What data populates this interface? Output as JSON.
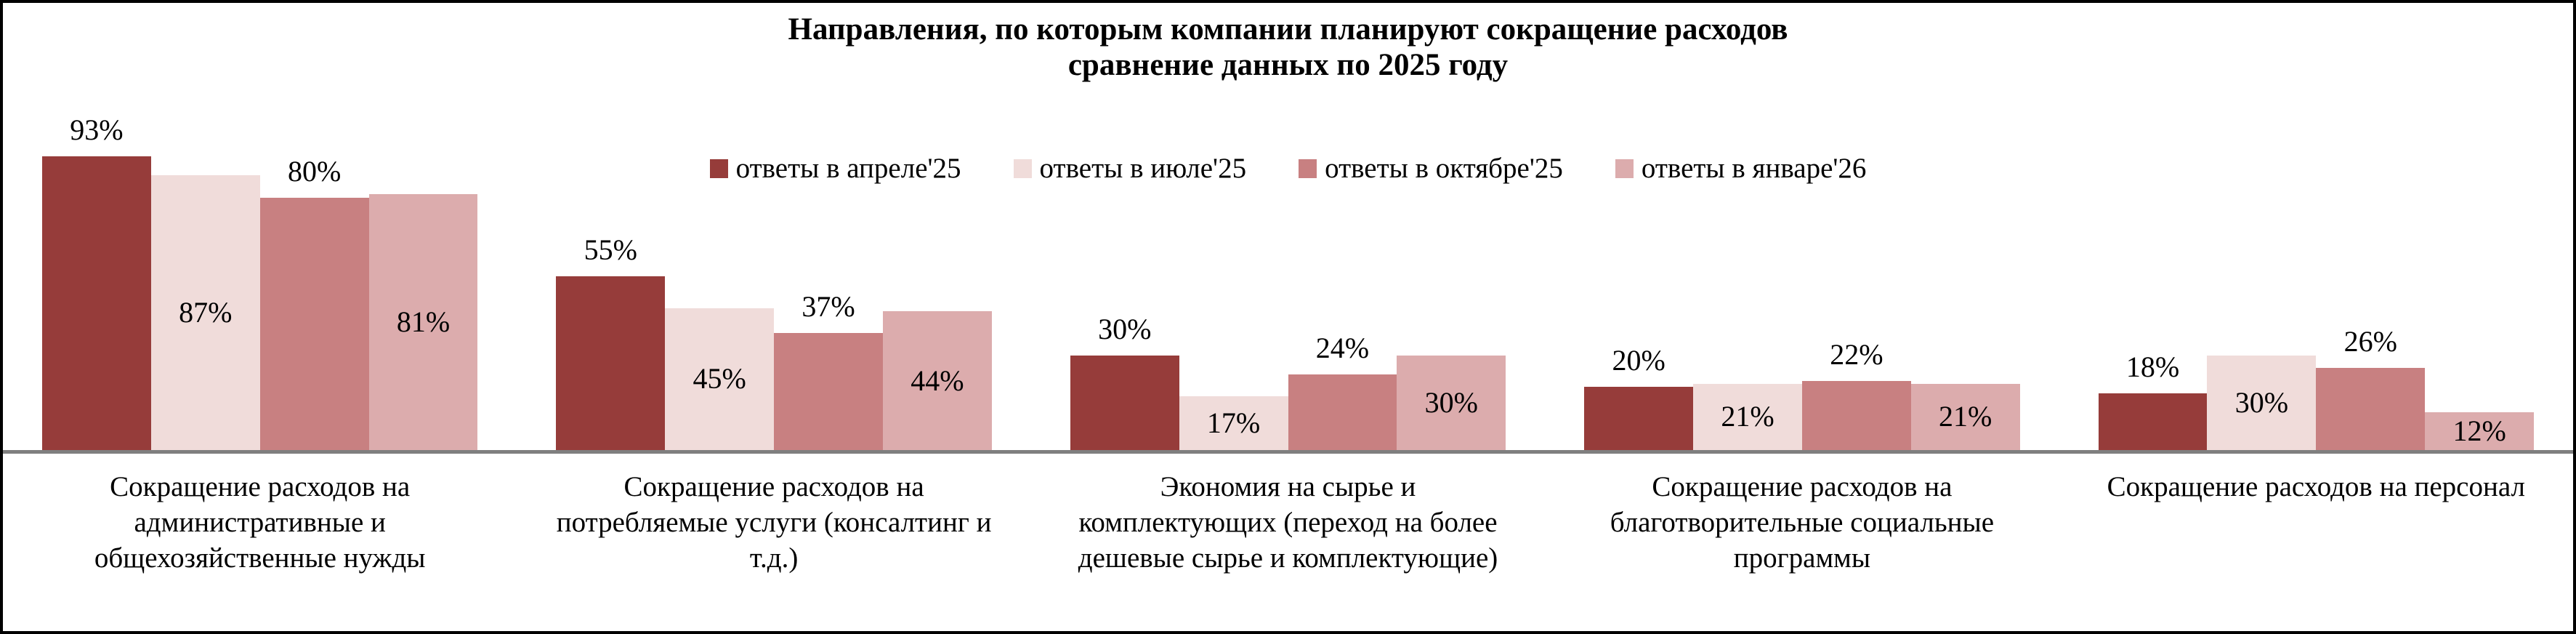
{
  "chart_data": {
    "type": "bar",
    "title": "Направления, по которым компании планируют сокращение расходов",
    "subtitle": "сравнение данных по 2025 году",
    "unit": "%",
    "ylim": [
      0,
      100
    ],
    "grid": false,
    "legend_position": "top-center",
    "background_color": "#FFFFFF",
    "text_color": "#000000",
    "axis_line_color": "#7F7F7F",
    "border_color": "#000000",
    "categories": [
      {
        "text": "Сокращение расходов на административные и общехозяйственные нужды",
        "lines": [
          "Сокращение расходов на",
          "административные и",
          "общехозяйственные нужды"
        ]
      },
      {
        "text": "Сокращение расходов на потребляемые услуги (консалтинг и т.д.)",
        "lines": [
          "Сокращение расходов на",
          "потребляемые услуги (консалтинг и",
          "т.д.)"
        ]
      },
      {
        "text": "Экономия на сырье и комплектующих (переход на более дешевые сырье и комплектующие)",
        "lines": [
          "Экономия на сырье и",
          "комплектующих (переход на более",
          "дешевые сырье и комплектующие)"
        ]
      },
      {
        "text": "Сокращение расходов на благотворительные социальные программы",
        "lines": [
          "Сокращение расходов на",
          "благотворительные социальные",
          "программы"
        ]
      },
      {
        "text": "Сокращение расходов на персонал",
        "lines": [
          "Сокращение расходов на персонал"
        ]
      }
    ],
    "series": [
      {
        "name": "ответы в апреле'25",
        "color": "#963C3A",
        "label_position": "above",
        "values": [
          93,
          55,
          30,
          20,
          18
        ]
      },
      {
        "name": "ответы в июле'25",
        "color": "#F0DCDA",
        "label_position": "inside",
        "values": [
          87,
          45,
          17,
          21,
          30
        ]
      },
      {
        "name": "ответы в октябре'25",
        "color": "#C88081",
        "label_position": "above",
        "values": [
          80,
          37,
          24,
          22,
          26
        ]
      },
      {
        "name": "ответы в январе'26",
        "color": "#DCACAD",
        "label_position": "inside",
        "values": [
          81,
          44,
          30,
          21,
          12
        ]
      }
    ]
  }
}
